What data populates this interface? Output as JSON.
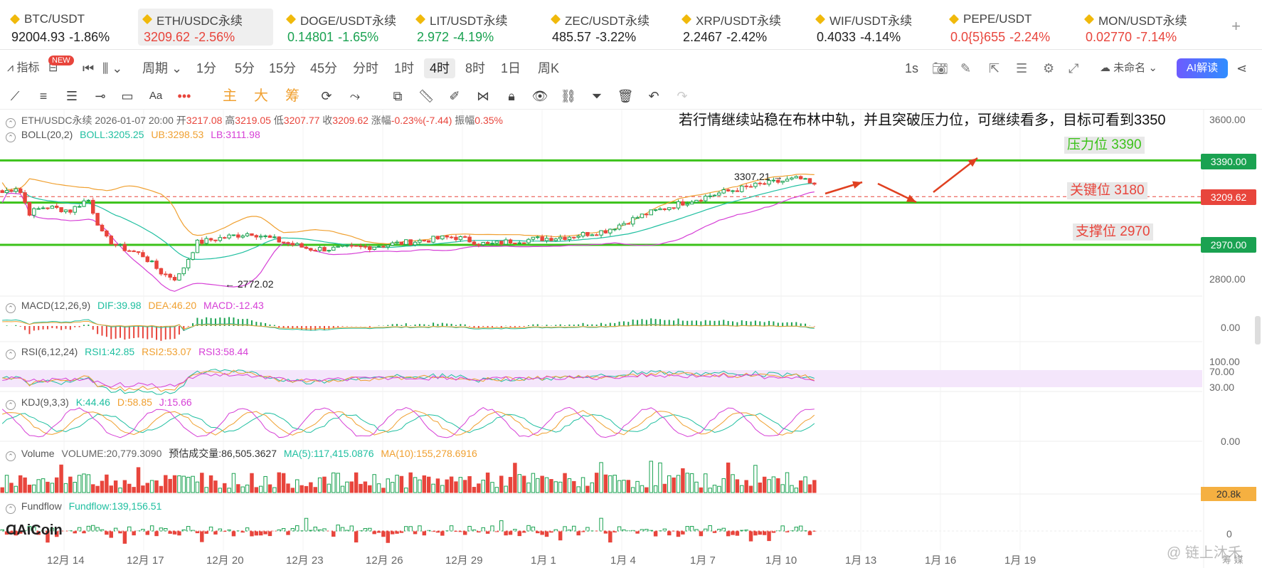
{
  "tickers": [
    {
      "name": "BTC/USDT",
      "price": "92004.93",
      "change": "-1.86%",
      "color": "#222",
      "active": false
    },
    {
      "name": "ETH/USDC永续",
      "price": "3209.62",
      "change": "-2.56%",
      "color": "#e8453c",
      "active": true
    },
    {
      "name": "DOGE/USDT永续",
      "price": "0.14801",
      "change": "-1.65%",
      "color": "#1aa251",
      "active": false
    },
    {
      "name": "LIT/USDT永续",
      "price": "2.972",
      "change": "-4.19%",
      "color": "#1aa251",
      "active": false
    },
    {
      "name": "ZEC/USDT永续",
      "price": "485.57",
      "change": "-3.22%",
      "color": "#222",
      "active": false
    },
    {
      "name": "XRP/USDT永续",
      "price": "2.2467",
      "change": "-2.42%",
      "color": "#222",
      "active": false
    },
    {
      "name": "WIF/USDT永续",
      "price": "0.4033",
      "change": "-4.14%",
      "color": "#222",
      "active": false
    },
    {
      "name": "PEPE/USDT",
      "price": "0.0{5}655",
      "change": "-2.24%",
      "color": "#e8453c",
      "active": false
    },
    {
      "name": "MON/USDT永续",
      "price": "0.02770",
      "change": "-7.14%",
      "color": "#e8453c",
      "active": false
    }
  ],
  "toolbar": {
    "indicators_label": "指标",
    "new_badge": "NEW",
    "period_label": "周期",
    "periods": [
      "1分",
      "5分",
      "15分",
      "45分",
      "分时",
      "1时",
      "4时",
      "8时",
      "1日",
      "周K"
    ],
    "selected_period": "4时",
    "interval_label": "1s",
    "unnamed_label": "未命名",
    "ai_label": "AI解读"
  },
  "drawtools": {
    "main": "主",
    "big": "大",
    "chip": "筹"
  },
  "chart": {
    "header": {
      "symbol": "ETH/USDC永续",
      "datetime": "2026-01-07 20:00",
      "open_label": "开",
      "open": "3217.08",
      "high_label": "高",
      "high": "3219.05",
      "low_label": "低",
      "low": "3207.77",
      "close_label": "收",
      "close": "3209.62",
      "chg_label": "涨幅",
      "chg": "-0.23%(-7.44)",
      "amp_label": "振幅",
      "amp": "0.35%"
    },
    "boll": {
      "name": "BOLL(20,2)",
      "mid": "BOLL:3205.25",
      "ub": "UB:3298.53",
      "lb": "LB:3111.98"
    },
    "headline": "若行情继续站稳在布林中轨，并且突破压力位，可继续看多，目标可看到3350",
    "annotations": {
      "resistance": "压力位 3390",
      "key": "关键位 3180",
      "support": "支撑位 2970",
      "high_mark": "3307.21",
      "low_mark": "2772.02"
    },
    "price_axis": [
      "3600.00",
      "3390.00",
      "3209.62",
      "2970.00",
      "2800.00"
    ],
    "macd": {
      "name": "MACD(12,26,9)",
      "dif": "DIF:39.98",
      "dea": "DEA:46.20",
      "macd": "MACD:-12.43",
      "axis": "0.00"
    },
    "rsi": {
      "name": "RSI(6,12,24)",
      "r1": "RSI1:42.85",
      "r2": "RSI2:53.07",
      "r3": "RSI3:58.44",
      "axis": [
        "100.00",
        "70.00",
        "30.00"
      ]
    },
    "kdj": {
      "name": "KDJ(9,3,3)",
      "k": "K:44.46",
      "d": "D:58.85",
      "j": "J:15.66",
      "axis": "0.00"
    },
    "volume": {
      "name": "Volume",
      "vol": "VOLUME:20,779.3090",
      "est": "预估成交量:86,505.3627",
      "ma5": "MA(5):117,415.0876",
      "ma10": "MA(10):155,278.6916",
      "tag": "20.8k"
    },
    "fundflow": {
      "name": "Fundflow",
      "val": "Fundflow:139,156.51",
      "axis": "0"
    },
    "time_axis": [
      "12月 14",
      "12月 17",
      "12月 20",
      "12月 23",
      "12月 26",
      "12月 29",
      "1月 1",
      "1月 4",
      "1月 7",
      "1月 10",
      "1月 13",
      "1月 16",
      "1月 19"
    ],
    "logo": "AiCoin",
    "watermark": "链上沐禾",
    "corner_tabs": "筹 媒"
  },
  "colors": {
    "up": "#1aa251",
    "down": "#e8453c",
    "level": "#3cc21a",
    "tag_green": "#1aa251",
    "tag_red": "#e8453c"
  }
}
